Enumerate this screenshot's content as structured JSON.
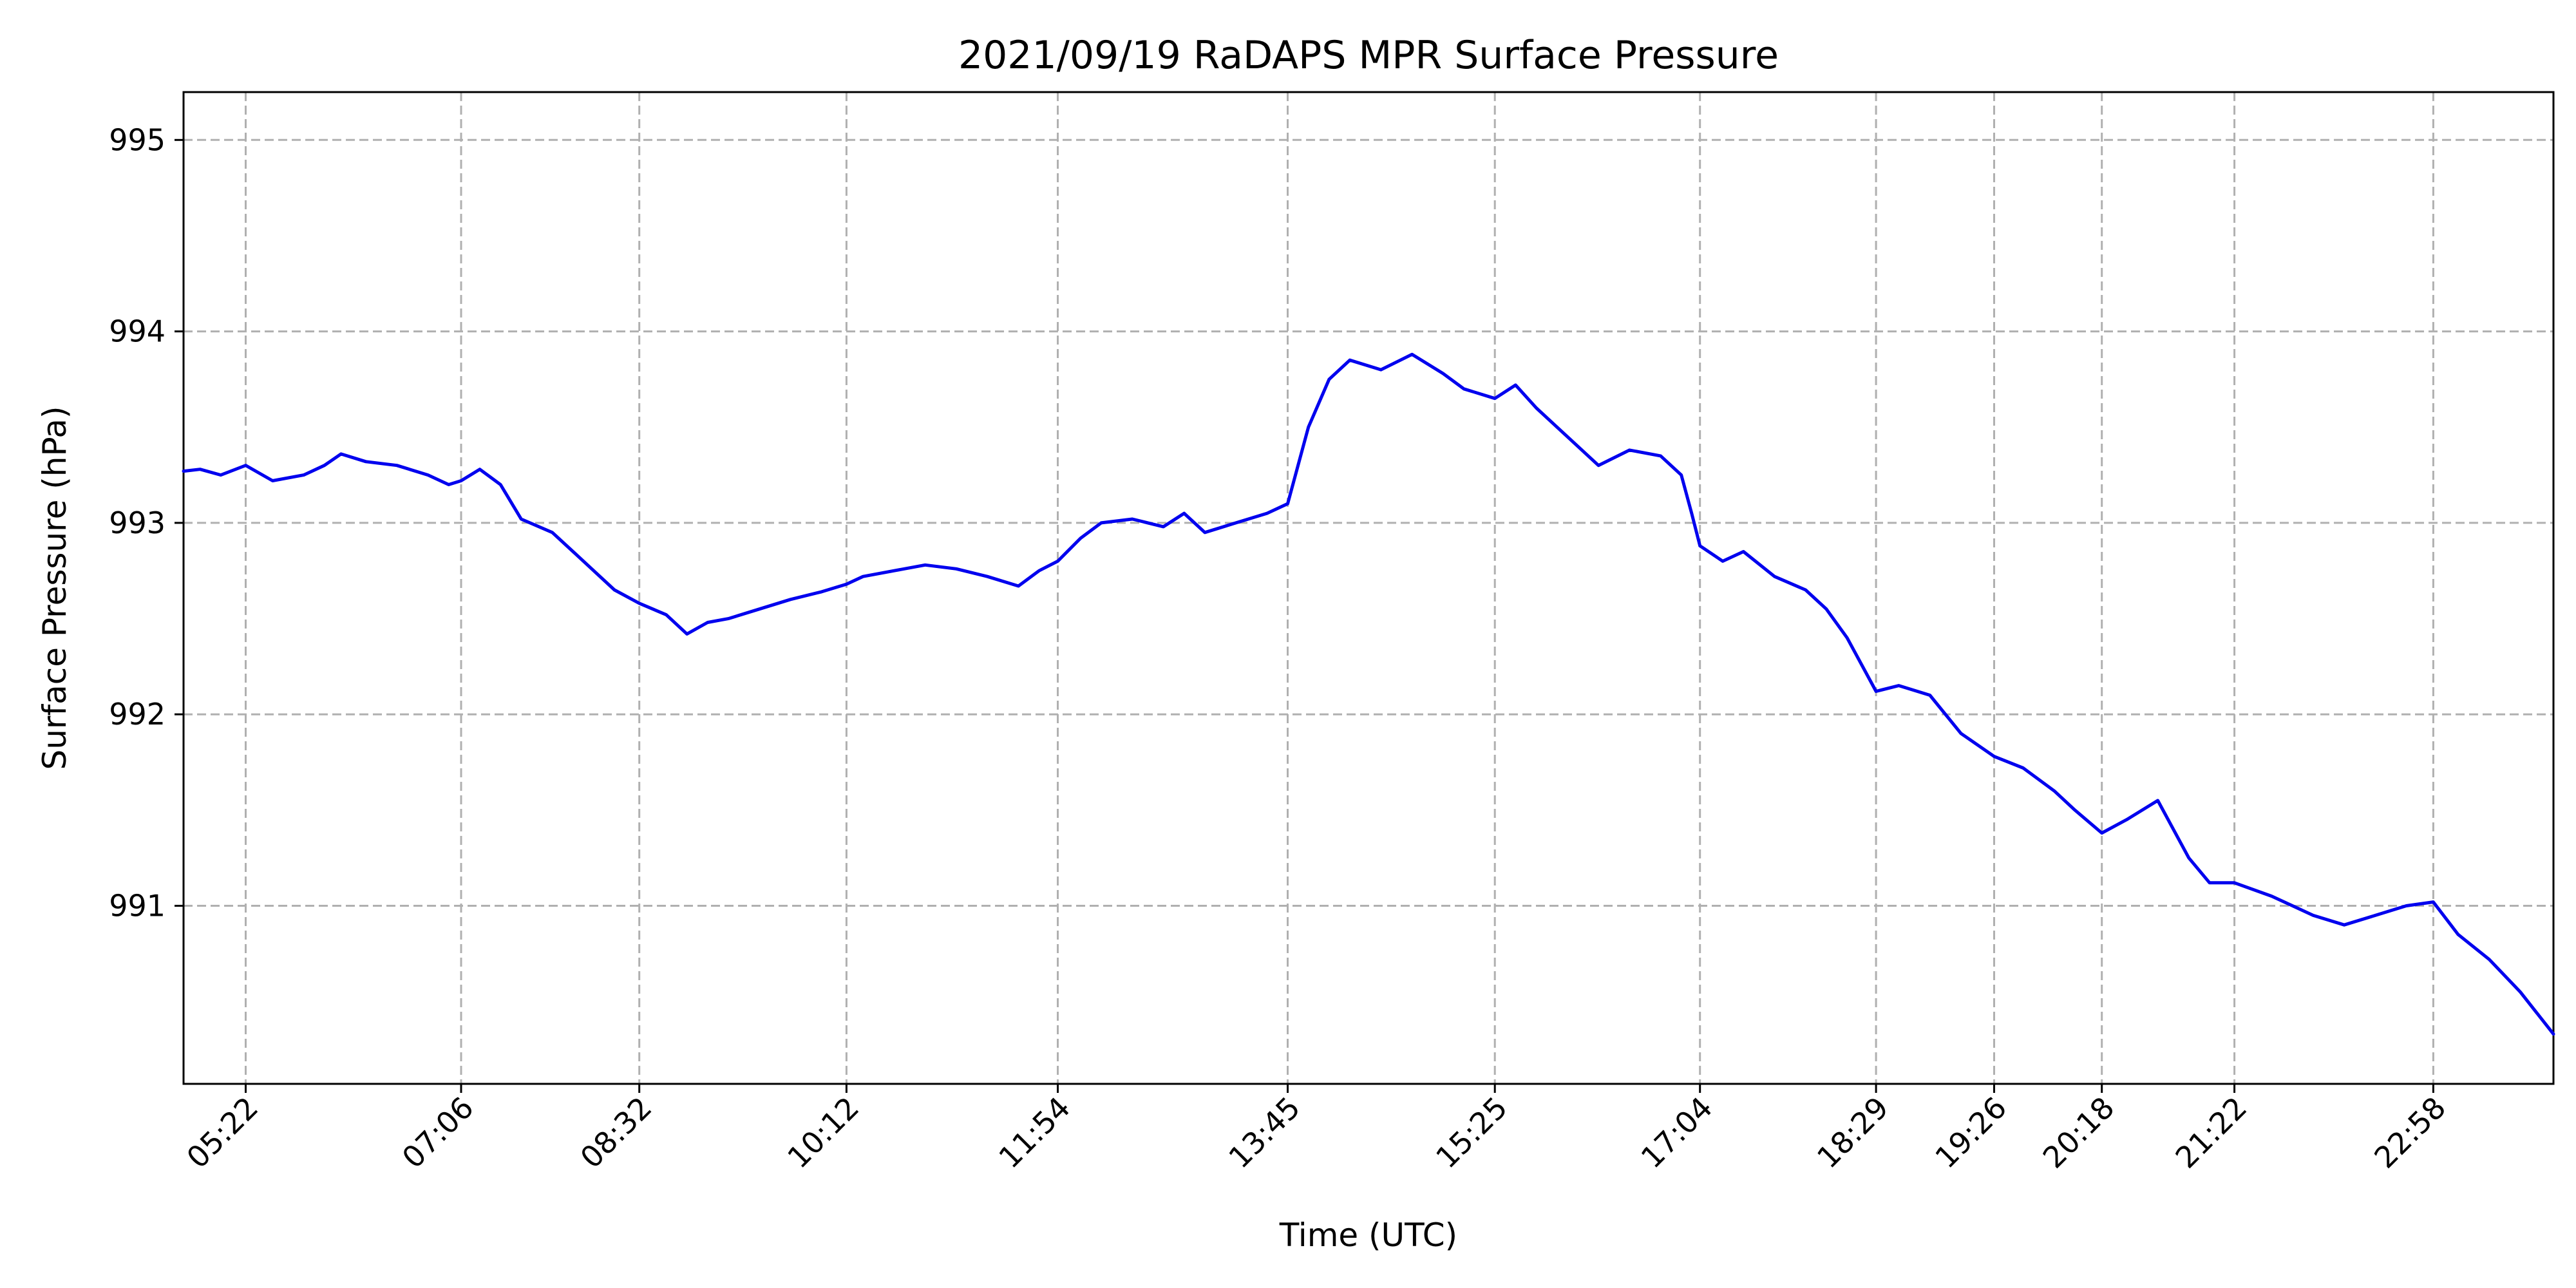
{
  "chart_data": {
    "type": "line",
    "title": "2021/09/19 RaDAPS MPR Surface Pressure",
    "xlabel": "Time (UTC)",
    "ylabel": "Surface Pressure (hPa)",
    "xlim": [
      "04:52",
      "23:56"
    ],
    "ylim": [
      990.07,
      995.25
    ],
    "x_ticks": [
      "05:22",
      "07:06",
      "08:32",
      "10:12",
      "11:54",
      "13:45",
      "15:25",
      "17:04",
      "18:29",
      "19:26",
      "20:18",
      "21:22",
      "22:58"
    ],
    "y_ticks": [
      991,
      992,
      993,
      994,
      995
    ],
    "grid": true,
    "legend": "none",
    "series_color": "#0000ee",
    "series": [
      {
        "x": [
          "04:52",
          "05:00",
          "05:10",
          "05:22",
          "05:35",
          "05:50",
          "06:00",
          "06:08",
          "06:20",
          "06:35",
          "06:50",
          "07:00",
          "07:06",
          "07:15",
          "07:25",
          "07:35",
          "07:50",
          "08:00",
          "08:10",
          "08:20",
          "08:32",
          "08:45",
          "08:55",
          "09:05",
          "09:15",
          "09:30",
          "09:45",
          "10:00",
          "10:12",
          "10:20",
          "10:35",
          "10:50",
          "11:05",
          "11:20",
          "11:35",
          "11:45",
          "11:54",
          "12:05",
          "12:15",
          "12:30",
          "12:45",
          "12:55",
          "13:05",
          "13:20",
          "13:35",
          "13:45",
          "13:50",
          "13:55",
          "14:05",
          "14:15",
          "14:30",
          "14:45",
          "15:00",
          "15:10",
          "15:25",
          "15:35",
          "15:45",
          "16:00",
          "16:15",
          "16:30",
          "16:45",
          "16:55",
          "17:00",
          "17:04",
          "17:15",
          "17:25",
          "17:40",
          "17:55",
          "18:05",
          "18:15",
          "18:29",
          "18:40",
          "18:55",
          "19:10",
          "19:26",
          "19:40",
          "19:55",
          "20:05",
          "20:18",
          "20:30",
          "20:45",
          "21:00",
          "21:10",
          "21:22",
          "21:40",
          "22:00",
          "22:15",
          "22:30",
          "22:45",
          "22:58",
          "23:10",
          "23:25",
          "23:40",
          "23:56"
        ],
        "y": [
          993.27,
          993.28,
          993.25,
          993.3,
          993.22,
          993.25,
          993.3,
          993.36,
          993.32,
          993.3,
          993.25,
          993.2,
          993.22,
          993.28,
          993.2,
          993.02,
          992.95,
          992.85,
          992.75,
          992.65,
          992.58,
          992.52,
          992.42,
          992.48,
          992.5,
          992.55,
          992.6,
          992.64,
          992.68,
          992.72,
          992.75,
          992.78,
          992.76,
          992.72,
          992.67,
          992.75,
          992.8,
          992.92,
          993.0,
          993.02,
          992.98,
          993.05,
          992.95,
          993.0,
          993.05,
          993.1,
          993.3,
          993.5,
          993.75,
          993.85,
          993.8,
          993.88,
          993.78,
          993.7,
          993.65,
          993.72,
          993.6,
          993.45,
          993.3,
          993.38,
          993.35,
          993.25,
          993.05,
          992.88,
          992.8,
          992.85,
          992.72,
          992.65,
          992.55,
          992.4,
          992.12,
          992.15,
          992.1,
          991.9,
          991.78,
          991.72,
          991.6,
          991.5,
          991.38,
          991.45,
          991.55,
          991.25,
          991.12,
          991.12,
          991.05,
          990.95,
          990.9,
          990.95,
          991.0,
          991.02,
          990.85,
          990.72,
          990.55,
          990.33
        ]
      }
    ]
  }
}
